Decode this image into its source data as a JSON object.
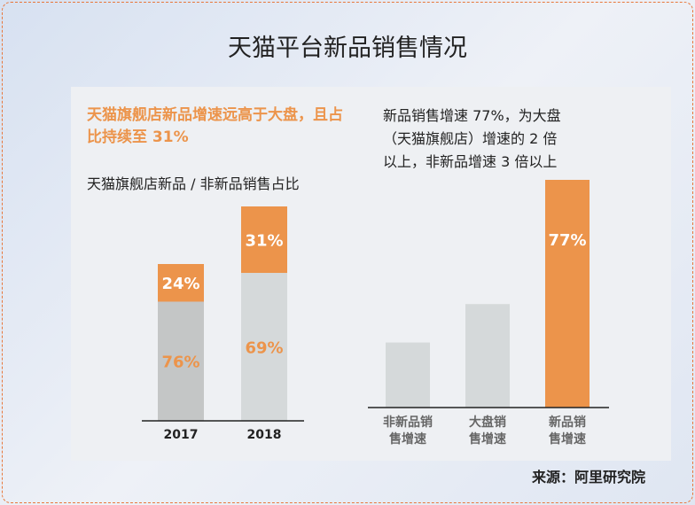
{
  "title": "天猫平台新品销售情况",
  "source": "来源：阿里研究院",
  "colors": {
    "accent": "#ec944b",
    "gray_dark": "#c4c6c6",
    "gray_light": "#d5d9da"
  },
  "chart_data": [
    {
      "type": "bar",
      "stacked": true,
      "headline": "天猫旗舰店新品增速远高于大盘，且占比持续至 31%",
      "title": "天猫旗舰店新品 / 非新品销售占比",
      "categories": [
        "2017",
        "2018"
      ],
      "series": [
        {
          "name": "非新品",
          "values": [
            76,
            69
          ],
          "labels": [
            "76%",
            "69%"
          ]
        },
        {
          "name": "新品",
          "values": [
            24,
            31
          ],
          "labels": [
            "24%",
            "31%"
          ]
        }
      ],
      "ylim": [
        0,
        100
      ]
    },
    {
      "type": "bar",
      "title": "新品销售增速 77%，为大盘（天猫旗舰店）增速的 2 倍以上，非新品增速 3 倍以上",
      "title_lines": [
        "新品销售增速 77%，为大盘",
        "（天猫旗舰店）增速的 2 倍",
        "以上，非新品增速 3 倍以上"
      ],
      "categories": [
        [
          "非新品销",
          "售增速"
        ],
        [
          "大盘销",
          "售增速"
        ],
        [
          "新品销",
          "售增速"
        ]
      ],
      "values": [
        22,
        35,
        77
      ],
      "labels": [
        "",
        "",
        "77%"
      ],
      "ylim": [
        0,
        77
      ]
    }
  ]
}
